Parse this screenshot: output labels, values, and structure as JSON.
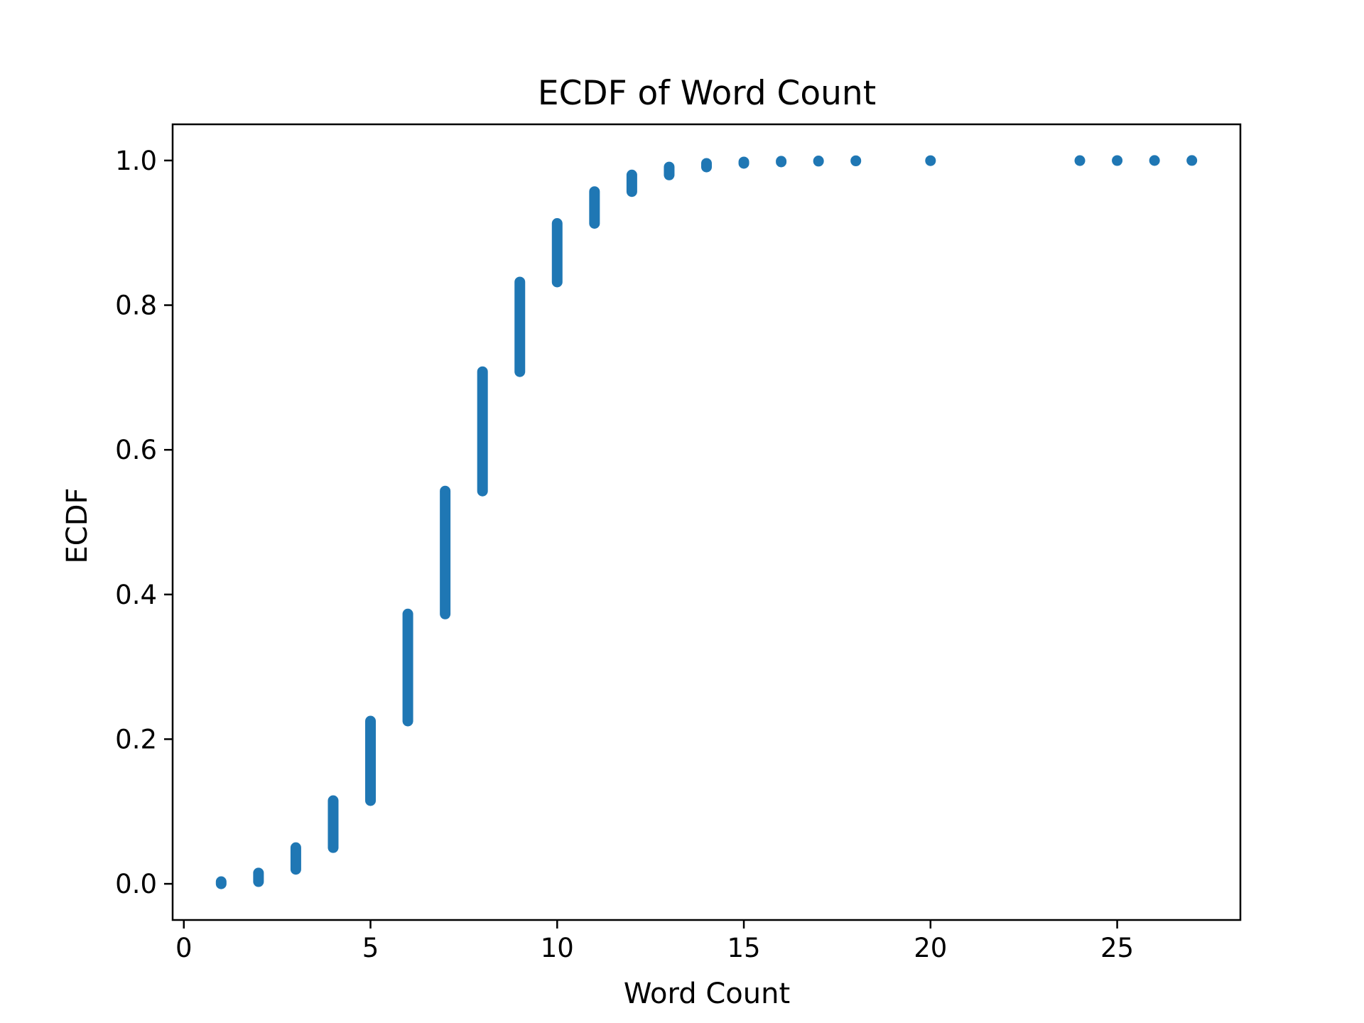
{
  "chart_data": {
    "type": "scatter",
    "title": "ECDF of Word Count",
    "xlabel": "Word Count",
    "ylabel": "ECDF",
    "xlim": [
      -0.3,
      28.3
    ],
    "ylim": [
      -0.05,
      1.05
    ],
    "xticks": [
      {
        "value": 0,
        "label": "0"
      },
      {
        "value": 5,
        "label": "5"
      },
      {
        "value": 10,
        "label": "10"
      },
      {
        "value": 15,
        "label": "15"
      },
      {
        "value": 20,
        "label": "20"
      },
      {
        "value": 25,
        "label": "25"
      }
    ],
    "yticks": [
      {
        "value": 0.0,
        "label": "0.0"
      },
      {
        "value": 0.2,
        "label": "0.2"
      },
      {
        "value": 0.4,
        "label": "0.4"
      },
      {
        "value": 0.6,
        "label": "0.6"
      },
      {
        "value": 0.8,
        "label": "0.8"
      },
      {
        "value": 1.0,
        "label": "1.0"
      }
    ],
    "grid": false,
    "legend": "none",
    "marker_color": "#1f77b4",
    "points": [
      {
        "x": 1,
        "y_min": 0.0,
        "y_max": 0.003
      },
      {
        "x": 2,
        "y_min": 0.003,
        "y_max": 0.015
      },
      {
        "x": 3,
        "y_min": 0.02,
        "y_max": 0.05
      },
      {
        "x": 4,
        "y_min": 0.05,
        "y_max": 0.115
      },
      {
        "x": 5,
        "y_min": 0.115,
        "y_max": 0.225
      },
      {
        "x": 6,
        "y_min": 0.225,
        "y_max": 0.373
      },
      {
        "x": 7,
        "y_min": 0.373,
        "y_max": 0.543
      },
      {
        "x": 8,
        "y_min": 0.543,
        "y_max": 0.708
      },
      {
        "x": 9,
        "y_min": 0.708,
        "y_max": 0.832
      },
      {
        "x": 10,
        "y_min": 0.832,
        "y_max": 0.913
      },
      {
        "x": 11,
        "y_min": 0.913,
        "y_max": 0.957
      },
      {
        "x": 12,
        "y_min": 0.957,
        "y_max": 0.98
      },
      {
        "x": 13,
        "y_min": 0.98,
        "y_max": 0.991
      },
      {
        "x": 14,
        "y_min": 0.991,
        "y_max": 0.996
      },
      {
        "x": 15,
        "y_min": 0.996,
        "y_max": 0.998
      },
      {
        "x": 16,
        "y_min": 0.998,
        "y_max": 0.999
      },
      {
        "x": 17,
        "y_min": 0.999,
        "y_max": 0.9994
      },
      {
        "x": 18,
        "y_min": 0.9994,
        "y_max": 0.9997
      },
      {
        "x": 20,
        "y_min": 0.9997,
        "y_max": 0.9998
      },
      {
        "x": 24,
        "y_min": 0.9998,
        "y_max": 0.9999
      },
      {
        "x": 25,
        "y_min": 0.9999,
        "y_max": 0.99995
      },
      {
        "x": 26,
        "y_min": 0.99995,
        "y_max": 0.99998
      },
      {
        "x": 27,
        "y_min": 1.0,
        "y_max": 1.0
      }
    ]
  }
}
